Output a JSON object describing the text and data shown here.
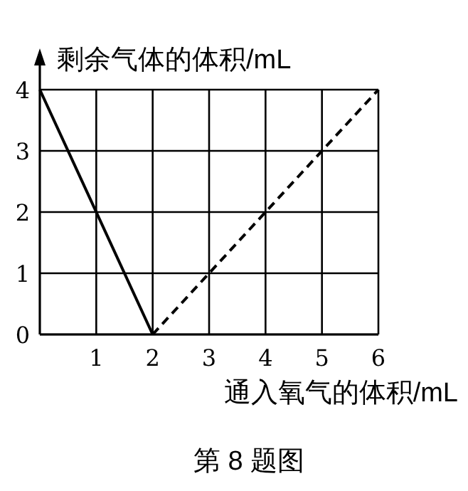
{
  "chart_data": {
    "type": "line",
    "xlabel": "通入氧气的体积/mL",
    "ylabel": "剩余气体的体积/mL",
    "xlim": [
      0,
      6
    ],
    "ylim": [
      0,
      4
    ],
    "xticks": [
      1,
      2,
      3,
      4,
      5,
      6
    ],
    "yticks": [
      0,
      1,
      2,
      3,
      4
    ],
    "grid": true,
    "series": [
      {
        "type": "line",
        "color": "#000000",
        "line_style": "solid",
        "x": [
          0,
          2
        ],
        "values": [
          4,
          0
        ]
      },
      {
        "type": "line",
        "color": "#000000",
        "line_style": "dashed",
        "x": [
          2,
          6
        ],
        "values": [
          0,
          4
        ]
      }
    ],
    "annotations": [
      "第 8 题图"
    ]
  }
}
